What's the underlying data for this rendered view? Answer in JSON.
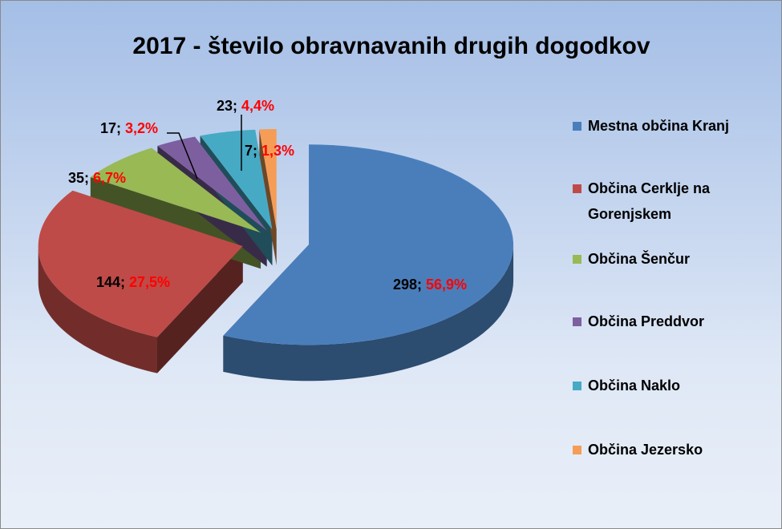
{
  "chart_data": {
    "type": "pie3d",
    "title": "2017 - število obravnavanih drugih dogodkov",
    "categories": [
      "Mestna občina Kranj",
      "Občina Cerklje na Gorenjskem",
      "Občina Šenčur",
      "Občina Preddvor",
      "Občina Naklo",
      "Občina Jezersko"
    ],
    "values": [
      298,
      144,
      35,
      17,
      23,
      7
    ],
    "value_labels": [
      "298; 56,9%",
      "144; 27,5%",
      "35; 6,7%",
      "17; 3,2%",
      "23; 4,4%",
      "7; 1,3%"
    ],
    "colors": [
      "#4a7ebb",
      "#be4b48",
      "#98b954",
      "#7d5fa0",
      "#46aac5",
      "#f59d56"
    ],
    "legend": "right"
  }
}
